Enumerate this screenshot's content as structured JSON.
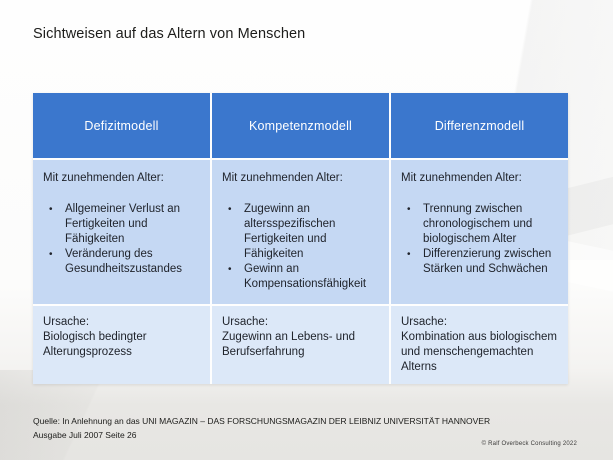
{
  "slide": {
    "title": "Sichtweisen auf das Altern von Menschen",
    "footer": {
      "source_line1": "Quelle: In Anlehnung an das UNI MAGAZIN – DAS FORSCHUNGSMAGAZIN DER LEIBNIZ UNIVERSITÄT HANNOVER",
      "source_line2": "Ausgabe Juli 2007 Seite 26",
      "copyright": "© Ralf Overbeck Consulting 2022"
    }
  },
  "colors": {
    "header_bg": "#3b77cd",
    "row_bg": "#c5d8f3",
    "cause_bg": "#dce8f8",
    "header_text": "#ffffff",
    "body_text": "#20242c"
  },
  "table": {
    "columns": [
      {
        "header": "Defizitmodell",
        "intro": "Mit zunehmenden Alter:",
        "bullets": [
          "Allgemeiner Verlust an Fertigkeiten und Fähigkeiten",
          "Veränderung des Gesundheitszustandes"
        ],
        "cause_label": "Ursache:",
        "cause": "Biologisch bedingter Alterungsprozess"
      },
      {
        "header": "Kompetenzmodell",
        "intro": "Mit zunehmenden Alter:",
        "bullets": [
          "Zugewinn an altersspezifischen Fertigkeiten und Fähigkeiten",
          "Gewinn an Kompensationsfähigkeit"
        ],
        "cause_label": "Ursache:",
        "cause": "Zugewinn an Lebens- und Berufserfahrung"
      },
      {
        "header": "Differenzmodell",
        "intro": "Mit zunehmenden Alter:",
        "bullets": [
          "Trennung zwischen chronologischem und biologischem Alter",
          "Differenzierung zwischen Stärken und Schwächen"
        ],
        "cause_label": "Ursache:",
        "cause": "Kombination aus biologischem und menschengemachten Alterns"
      }
    ]
  }
}
